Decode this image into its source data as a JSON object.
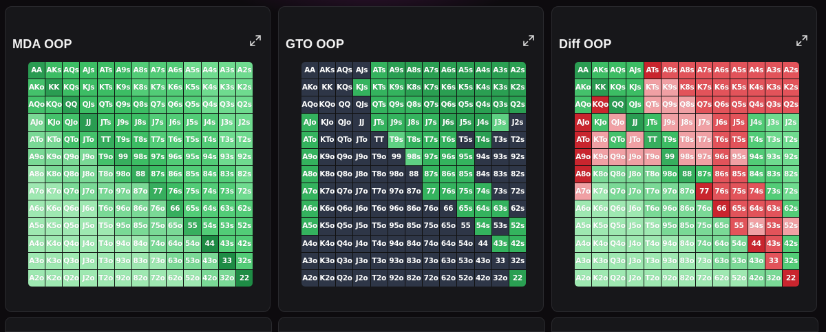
{
  "panels": [
    {
      "title": "MDA OOP",
      "mode": "mda"
    },
    {
      "title": "GTO OOP",
      "mode": "gto"
    },
    {
      "title": "Diff OOP",
      "mode": "diff"
    }
  ],
  "expand_icon": "expand-icon",
  "ranks": [
    "A",
    "K",
    "Q",
    "J",
    "T",
    "9",
    "8",
    "7",
    "6",
    "5",
    "4",
    "3",
    "2"
  ],
  "colors": {
    "green_dark": "#1d8a44",
    "green_mid": "#36b75d",
    "green_light": "#8fe3a3",
    "navy": "#2e3647",
    "red_dark": "#c9252e",
    "red_mid": "#e2535a",
    "red_light": "#f0a0a4"
  },
  "gto_green_cells": [
    "ATs",
    "A9s",
    "A8s",
    "A7s",
    "A6s",
    "A5s",
    "A4s",
    "A3s",
    "A2s",
    "KJs",
    "KTs",
    "K9s",
    "K8s",
    "K7s",
    "K6s",
    "K5s",
    "K4s",
    "K3s",
    "K2s",
    "QTs",
    "Q9s",
    "Q8s",
    "Q7s",
    "Q6s",
    "Q5s",
    "Q4s",
    "Q3s",
    "Q2s",
    "AJo",
    "JTs",
    "J9s",
    "J8s",
    "J7s",
    "J6s",
    "J5s",
    "J4s",
    "J3s",
    "ATo",
    "T9s",
    "T8s",
    "T7s",
    "T6s",
    "T4s",
    "A9o",
    "98s",
    "97s",
    "96s",
    "95s",
    "A8o",
    "87s",
    "86s",
    "85s",
    "A7o",
    "77",
    "76s",
    "75s",
    "74s",
    "A6o",
    "65s",
    "64s",
    "63s",
    "A5o",
    "54s",
    "52s",
    "43s",
    "42s",
    "22"
  ],
  "diff_red_dark": [
    "ATs",
    "KQo",
    "AJo",
    "ATo",
    "A9o",
    "A8o",
    "77",
    "66",
    "44",
    "22"
  ],
  "diff_red_mid": [
    "A9s",
    "A8s",
    "A7s",
    "A6s",
    "A5s",
    "A4s",
    "A3s",
    "A2s",
    "K8s",
    "K7s",
    "K6s",
    "K5s",
    "K4s",
    "K3s",
    "K2s",
    "Q7s",
    "Q6s",
    "Q5s",
    "Q4s",
    "Q3s",
    "Q2s",
    "J6s",
    "J5s",
    "T6s",
    "T5s",
    "96s",
    "86s",
    "85s",
    "76s",
    "75s",
    "74s",
    "65s",
    "64s",
    "63s",
    "55",
    "53s",
    "43s",
    "33"
  ],
  "diff_red_light": [
    "KTs",
    "K9s",
    "QTs",
    "Q9s",
    "Q8s",
    "J9s",
    "J8s",
    "J7s",
    "T8s",
    "T7s",
    "97s",
    "95s",
    "A7o",
    "54s",
    "52s",
    "KTo",
    "QJo",
    "T9o",
    "JTo",
    "K9o",
    "Q9o",
    "J9o",
    "98s"
  ]
}
